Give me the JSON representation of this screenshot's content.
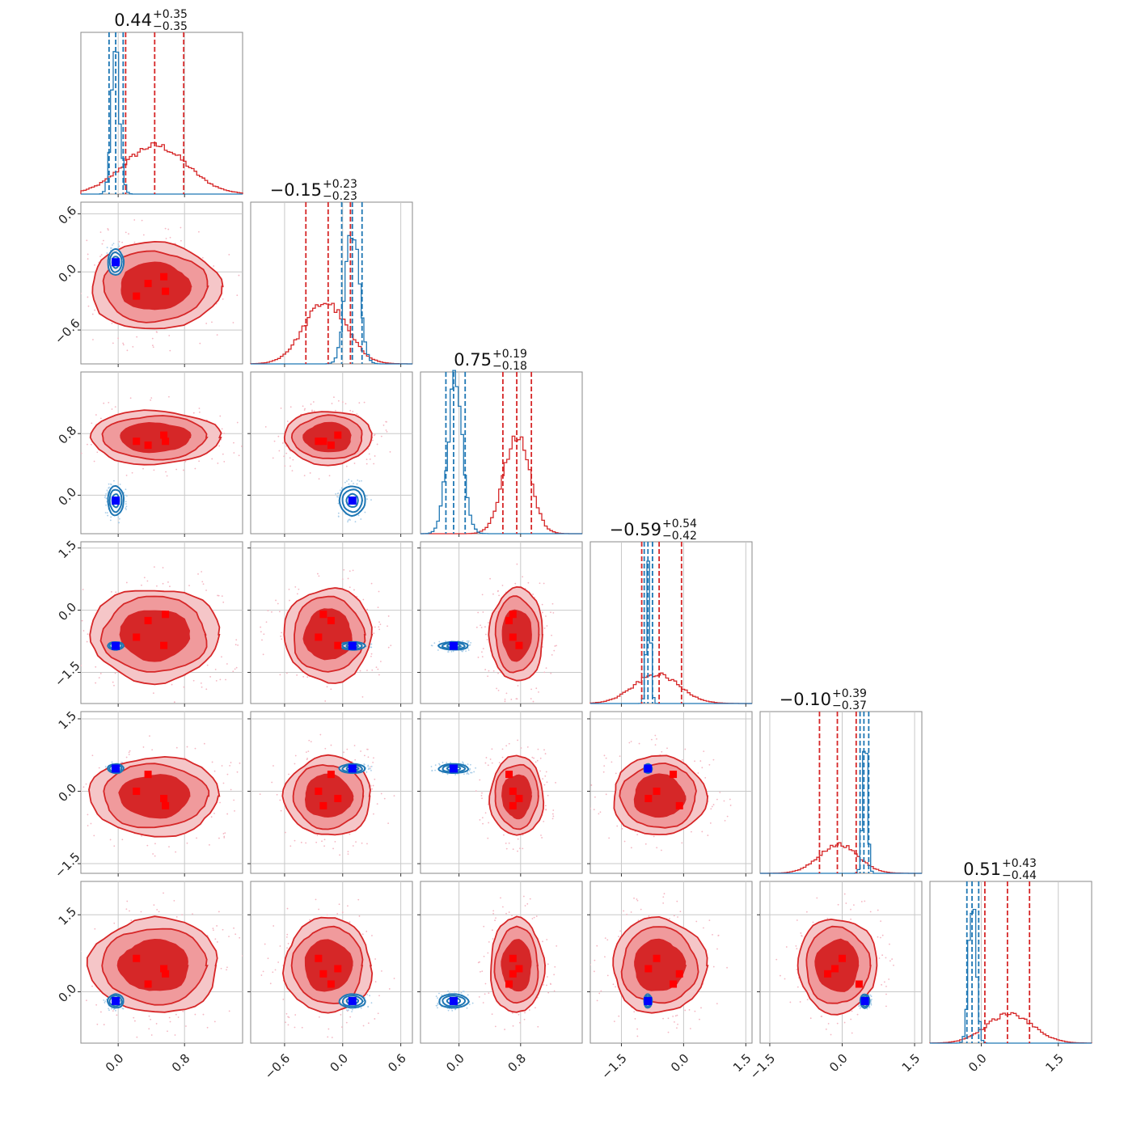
{
  "figure": {
    "colors": {
      "red": "#d62728",
      "red_light": "#f09a9c",
      "blue": "#1f77b4",
      "marker_blue": "#0000ff",
      "marker_red": "#ff0000"
    }
  },
  "chart_data": {
    "type": "corner",
    "params": [
      {
        "title": "0.44",
        "plus": "+0.35",
        "minus": "−0.35",
        "range": [
          -0.45,
          1.5
        ],
        "ticks": [
          0.0,
          0.8
        ],
        "ticklabels": [
          "0.0",
          "0.8"
        ],
        "red_quantiles": [
          0.09,
          0.44,
          0.79
        ],
        "blue_quantiles": [
          -0.11,
          -0.03,
          0.06
        ],
        "red_hist": {
          "mean": 0.45,
          "sd": 0.38,
          "peak": 0.3
        },
        "blue_hist": {
          "mean": -0.03,
          "sd": 0.05,
          "peak": 0.88
        }
      },
      {
        "title": "−0.15",
        "plus": "+0.23",
        "minus": "−0.23",
        "range": [
          -0.95,
          0.72
        ],
        "ticks": [
          -0.6,
          0.0,
          0.6
        ],
        "ticklabels": [
          "−0.6",
          "0.0",
          "0.6"
        ],
        "red_quantiles": [
          -0.38,
          -0.15,
          0.08
        ],
        "blue_quantiles": [
          -0.01,
          0.1,
          0.2
        ],
        "red_hist": {
          "mean": -0.18,
          "sd": 0.22,
          "peak": 0.38
        },
        "blue_hist": {
          "mean": 0.1,
          "sd": 0.07,
          "peak": 0.88
        }
      },
      {
        "title": "0.75",
        "plus": "+0.19",
        "minus": "−0.18",
        "range": [
          -0.5,
          1.6
        ],
        "ticks": [
          0.0,
          0.8
        ],
        "ticklabels": [
          "0.0",
          "0.8"
        ],
        "red_quantiles": [
          0.57,
          0.75,
          0.94
        ],
        "blue_quantiles": [
          -0.17,
          -0.07,
          0.08
        ],
        "red_hist": {
          "mean": 0.75,
          "sd": 0.17,
          "peak": 0.6
        },
        "blue_hist": {
          "mean": -0.05,
          "sd": 0.1,
          "peak": 0.92
        }
      },
      {
        "title": "−0.59",
        "plus": "+0.54",
        "minus": "−0.42",
        "range": [
          -2.25,
          1.65
        ],
        "ticks": [
          -1.5,
          0.0,
          1.5
        ],
        "ticklabels": [
          "−1.5",
          "0.0",
          "1.5"
        ],
        "red_quantiles": [
          -1.01,
          -0.59,
          -0.05
        ],
        "blue_quantiles": [
          -0.95,
          -0.86,
          -0.75
        ],
        "red_hist": {
          "mean": -0.65,
          "sd": 0.55,
          "peak": 0.18
        },
        "blue_hist": {
          "mean": -0.85,
          "sd": 0.05,
          "peak": 0.88
        }
      },
      {
        "title": "−0.10",
        "plus": "+0.39",
        "minus": "−0.37",
        "range": [
          -1.7,
          1.65
        ],
        "ticks": [
          -1.5,
          0.0,
          1.5
        ],
        "ticklabels": [
          "−1.5",
          "0.0",
          "1.5"
        ],
        "red_quantiles": [
          -0.47,
          -0.1,
          0.29
        ],
        "blue_quantiles": [
          0.37,
          0.45,
          0.55
        ],
        "red_hist": {
          "mean": -0.08,
          "sd": 0.4,
          "peak": 0.18
        },
        "blue_hist": {
          "mean": 0.47,
          "sd": 0.05,
          "peak": 0.92
        }
      },
      {
        "title": "0.51",
        "plus": "+0.43",
        "minus": "−0.44",
        "range": [
          -1.0,
          2.15
        ],
        "ticks": [
          0.0,
          1.5
        ],
        "ticklabels": [
          "0.0",
          "1.5"
        ],
        "red_quantiles": [
          0.07,
          0.51,
          0.94
        ],
        "blue_quantiles": [
          -0.28,
          -0.18,
          -0.05
        ],
        "red_hist": {
          "mean": 0.55,
          "sd": 0.45,
          "peak": 0.18
        },
        "blue_hist": {
          "mean": -0.17,
          "sd": 0.07,
          "peak": 0.9
        }
      }
    ],
    "red_blob": {
      "center": [
        0.44,
        -0.15,
        0.75,
        -0.59,
        -0.1,
        0.51
      ]
    },
    "blue_blob": {
      "center": [
        -0.03,
        0.1,
        -0.07,
        -0.86,
        0.47,
        -0.18
      ]
    },
    "blue_markers": [
      -0.03,
      0.1,
      -0.07,
      -0.86,
      0.47,
      -0.18
    ],
    "red_markers": [
      [
        0.22,
        -0.25,
        0.7,
        -0.65,
        0.0,
        0.65
      ],
      [
        0.36,
        -0.12,
        0.65,
        -0.25,
        0.35,
        0.15
      ],
      [
        0.55,
        -0.05,
        0.78,
        -0.85,
        -0.15,
        0.45
      ],
      [
        0.57,
        -0.2,
        0.7,
        -0.1,
        -0.3,
        0.35
      ]
    ]
  }
}
